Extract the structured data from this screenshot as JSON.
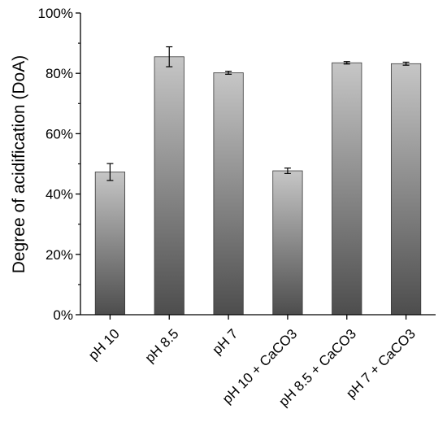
{
  "chart_data": {
    "type": "bar",
    "title": "",
    "xlabel": "",
    "ylabel": "Degree of acidification (DoA)",
    "ylim": [
      0,
      100
    ],
    "yticks": [
      "0%",
      "20%",
      "40%",
      "60%",
      "80%",
      "100%"
    ],
    "categories": [
      "pH 10",
      "pH 8.5",
      "pH 7",
      "pH 10 + CaCO3",
      "pH 8.5 + CaCO3",
      "pH 7 + CaCO3"
    ],
    "values": [
      47.3,
      85.5,
      80.2,
      47.7,
      83.5,
      83.2
    ],
    "errors": [
      2.8,
      3.3,
      0.5,
      0.9,
      0.4,
      0.5
    ],
    "grid": false,
    "legend": "none",
    "colors": {
      "bar_top": "#c6c6c6",
      "bar_bottom": "#4d4d4d",
      "axis": "#000000"
    }
  }
}
